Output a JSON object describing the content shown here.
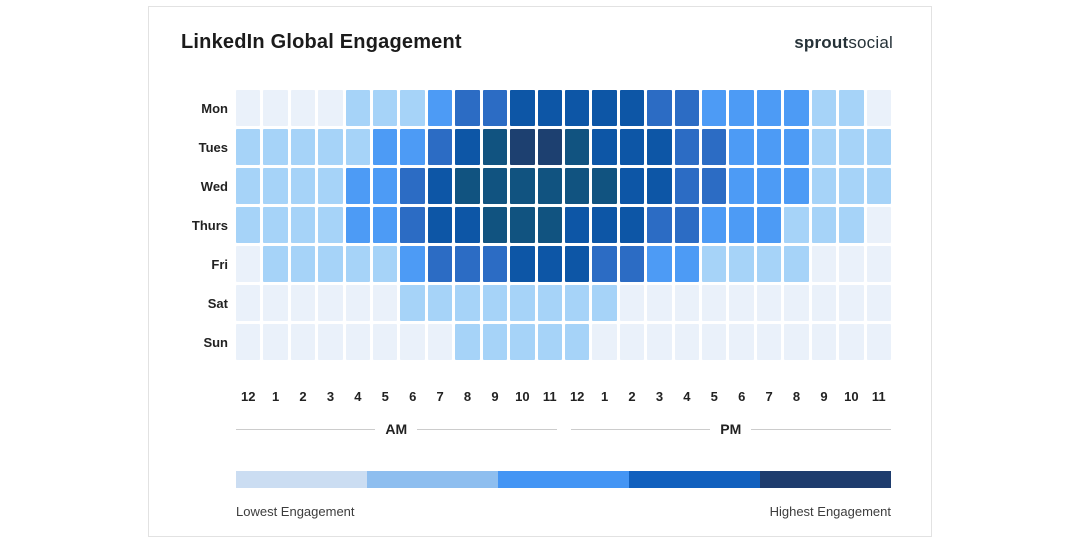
{
  "header": {
    "title": "LinkedIn Global Engagement",
    "logo_bold": "sprout",
    "logo_regular": "social"
  },
  "chart_data": {
    "type": "heatmap",
    "title": "LinkedIn Global Engagement",
    "x_axis": "hour of day",
    "y_axis": "day of week",
    "days": [
      "Mon",
      "Tues",
      "Wed",
      "Thurs",
      "Fri",
      "Sat",
      "Sun"
    ],
    "hours": [
      "12",
      "1",
      "2",
      "3",
      "4",
      "5",
      "6",
      "7",
      "8",
      "9",
      "10",
      "11",
      "12",
      "1",
      "2",
      "3",
      "4",
      "5",
      "6",
      "7",
      "8",
      "9",
      "10",
      "11"
    ],
    "period_labels": {
      "am": "AM",
      "pm": "PM"
    },
    "level_scale": "0 = lowest engagement, 6 = highest engagement",
    "palette": [
      "#EAF1FA",
      "#A6D3F8",
      "#4D9BF5",
      "#2C6CC4",
      "#0D56A6",
      "#115380",
      "#1D4070"
    ],
    "grid": [
      [
        0,
        0,
        0,
        0,
        1,
        1,
        1,
        2,
        3,
        3,
        4,
        4,
        4,
        4,
        4,
        3,
        3,
        2,
        2,
        2,
        2,
        1,
        1,
        0
      ],
      [
        1,
        1,
        1,
        1,
        1,
        2,
        2,
        3,
        4,
        5,
        6,
        6,
        5,
        4,
        4,
        4,
        3,
        3,
        2,
        2,
        2,
        1,
        1,
        1
      ],
      [
        1,
        1,
        1,
        1,
        2,
        2,
        3,
        4,
        5,
        5,
        5,
        5,
        5,
        5,
        4,
        4,
        3,
        3,
        2,
        2,
        2,
        1,
        1,
        1
      ],
      [
        1,
        1,
        1,
        1,
        2,
        2,
        3,
        4,
        4,
        5,
        5,
        5,
        4,
        4,
        4,
        3,
        3,
        2,
        2,
        2,
        1,
        1,
        1,
        0
      ],
      [
        0,
        1,
        1,
        1,
        1,
        1,
        2,
        3,
        3,
        3,
        4,
        4,
        4,
        3,
        3,
        2,
        2,
        1,
        1,
        1,
        1,
        0,
        0,
        0
      ],
      [
        0,
        0,
        0,
        0,
        0,
        0,
        1,
        1,
        1,
        1,
        1,
        1,
        1,
        1,
        0,
        0,
        0,
        0,
        0,
        0,
        0,
        0,
        0,
        0
      ],
      [
        0,
        0,
        0,
        0,
        0,
        0,
        0,
        0,
        1,
        1,
        1,
        1,
        1,
        0,
        0,
        0,
        0,
        0,
        0,
        0,
        0,
        0,
        0,
        0
      ]
    ],
    "legend": {
      "colors": [
        "#CBDDF2",
        "#8EBEEF",
        "#4495F4",
        "#1160BE",
        "#1E3C6D"
      ],
      "low_label": "Lowest Engagement",
      "high_label": "Highest Engagement"
    }
  }
}
